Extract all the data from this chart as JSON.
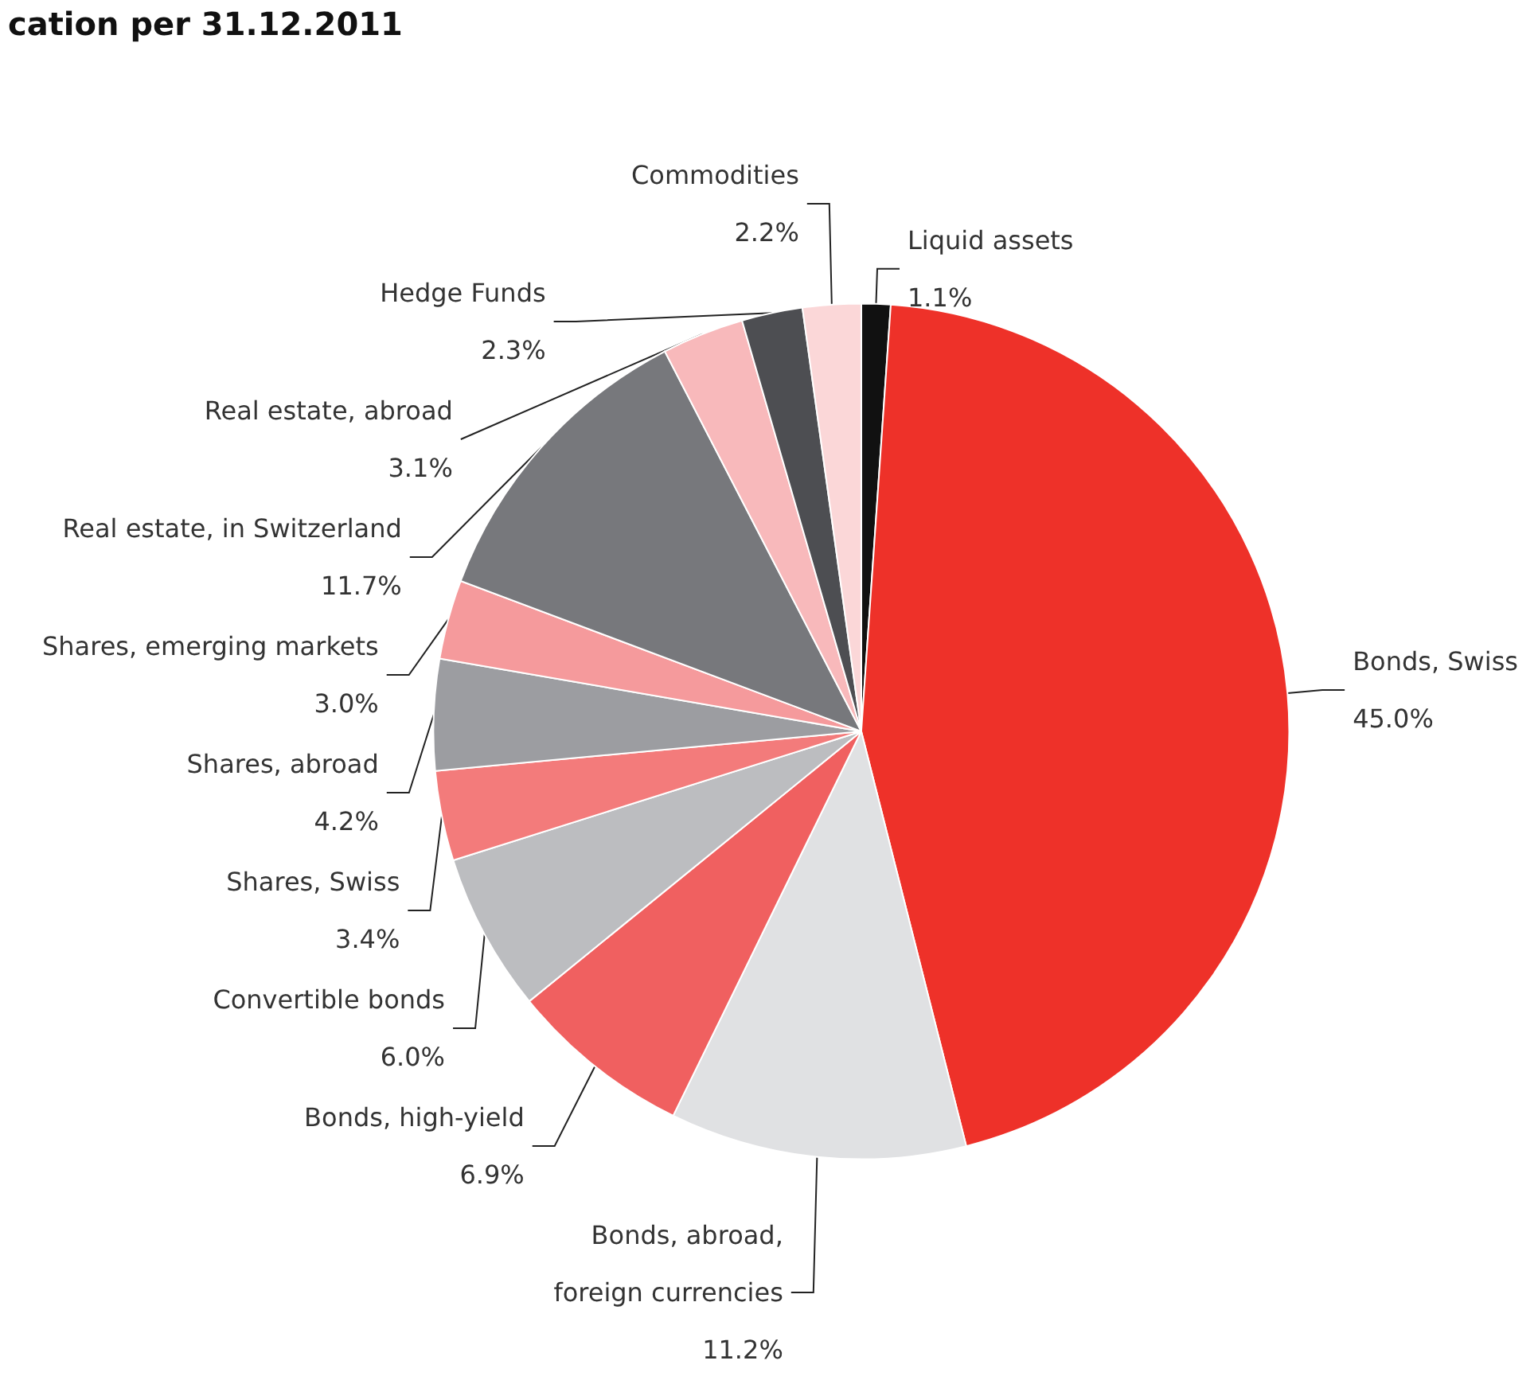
{
  "chart_data": {
    "type": "pie",
    "title": "cation per 31.12.2011",
    "categories": [
      "Liquid assets",
      "Bonds, Swiss",
      "Bonds, abroad,\nforeign currencies",
      "Bonds, high-yield",
      "Convertible bonds",
      "Shares, Swiss",
      "Shares, abroad",
      "Shares, emerging markets",
      "Real estate, in Switzerland",
      "Real estate, abroad",
      "Hedge Funds",
      "Commodities"
    ],
    "values": [
      1.1,
      45.0,
      11.2,
      6.9,
      6.0,
      3.4,
      4.2,
      3.0,
      11.7,
      3.1,
      2.3,
      2.2
    ],
    "value_labels": [
      "1.1%",
      "45.0%",
      "11.2%",
      "6.9%",
      "6.0%",
      "3.4%",
      "4.2%",
      "3.0%",
      "11.7%",
      "3.1%",
      "2.3%",
      "2.2%"
    ],
    "colors": [
      "#111111",
      "#ee3129",
      "#e0e1e3",
      "#f06060",
      "#bcbdc0",
      "#f37b7b",
      "#9c9da1",
      "#f59a9c",
      "#77787c",
      "#f8b9bb",
      "#4d4e52",
      "#fbd7d8"
    ],
    "legend": false
  }
}
